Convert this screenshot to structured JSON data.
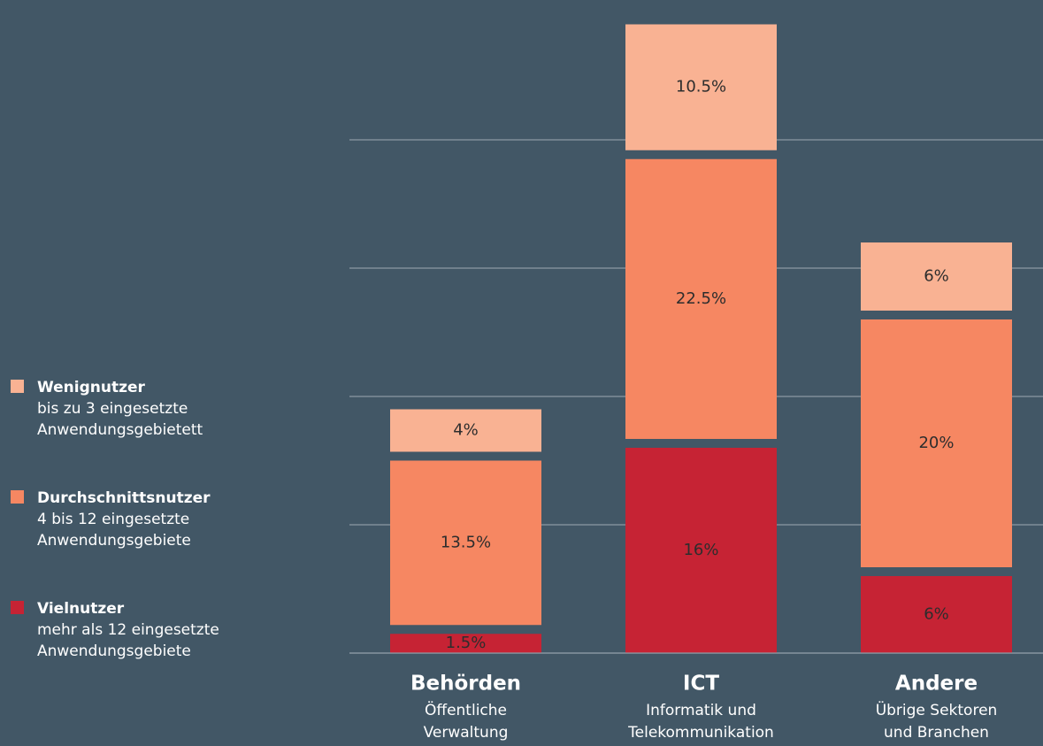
{
  "chart_data": {
    "type": "stacked-bar",
    "categories": [
      "Behörden",
      "ICT",
      "Andere"
    ],
    "category_descriptions": [
      [
        "Öffentliche",
        "Verwaltung"
      ],
      [
        "Informatik und",
        "Telekommunikation"
      ],
      [
        "Übrige Sektoren",
        "und Branchen"
      ]
    ],
    "series": [
      {
        "name": "Vielnutzer",
        "description": [
          "mehr als 12 eingesetzte",
          "Anwendungsgebiete"
        ],
        "color": "#c62334",
        "values": [
          1.5,
          16,
          6
        ],
        "value_labels": [
          "1.5%",
          "16%",
          "6%"
        ]
      },
      {
        "name": "Durchschnittsnutzer",
        "description": [
          "4 bis 12 eingesetzte",
          "Anwendungsgebiete"
        ],
        "color": "#f68762",
        "values": [
          13.5,
          22.5,
          20
        ],
        "value_labels": [
          "13.5%",
          "22.5%",
          "20%"
        ]
      },
      {
        "name": "Wenignutzer",
        "description": [
          "bis zu 3 eingesetzte",
          "Anwendungsgebietett"
        ],
        "color": "#f9b293",
        "values": [
          4,
          10.5,
          6
        ],
        "value_labels": [
          "4%",
          "10.5%",
          "6%"
        ]
      }
    ],
    "ylim": [
      0,
      50
    ],
    "yticks": [
      0,
      10,
      20,
      30,
      40
    ],
    "grid": true
  }
}
